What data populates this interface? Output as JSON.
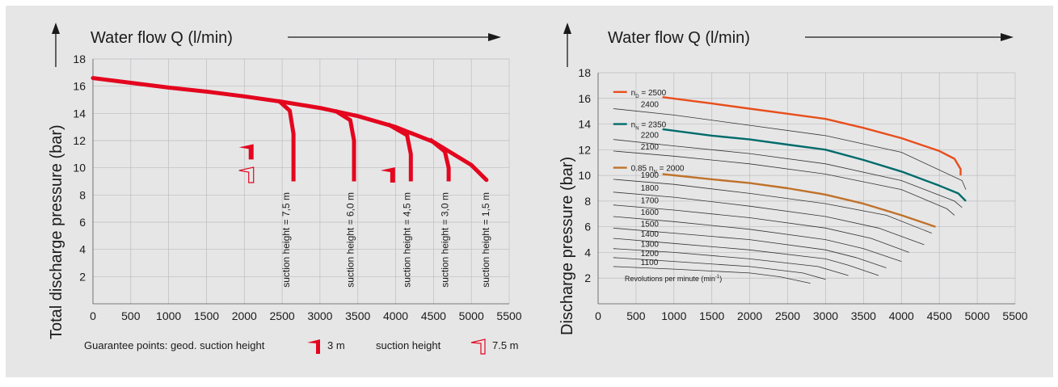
{
  "colors": {
    "red": "#e3061e",
    "orange_red": "#e84e1b",
    "teal": "#006b6b",
    "brown": "#c0722a",
    "thin": "#333333"
  },
  "chart_data": [
    {
      "type": "line",
      "title": "Water flow Q (l/min)",
      "ylabel": "Total discharge pressure (bar)",
      "xlim": [
        0,
        5500
      ],
      "ylim": [
        0,
        18
      ],
      "x_ticks": [
        "0",
        "500",
        "1000",
        "1500",
        "2000",
        "2500",
        "3000",
        "3500",
        "4000",
        "4500",
        "5000",
        "5500"
      ],
      "y_ticks": [
        "2",
        "4",
        "6",
        "8",
        "10",
        "12",
        "14",
        "16",
        "18"
      ],
      "grid": true,
      "main_curve": {
        "x": [
          0,
          500,
          1000,
          1500,
          2000,
          2500,
          3000,
          3500,
          4000,
          4500,
          5000,
          5200
        ],
        "y": [
          16.6,
          16.25,
          15.9,
          15.6,
          15.25,
          14.85,
          14.4,
          13.8,
          13.0,
          11.9,
          10.2,
          9.1
        ]
      },
      "suction_curves": [
        {
          "label": "suction height = 7,5 m",
          "x": [
            2450,
            2600,
            2650,
            2650
          ],
          "y": [
            14.95,
            14.2,
            12.5,
            9.0
          ]
        },
        {
          "label": "suction height = 6,0 m",
          "x": [
            3200,
            3400,
            3450,
            3450
          ],
          "y": [
            14.2,
            13.5,
            12.0,
            9.0
          ]
        },
        {
          "label": "suction height = 4,5 m",
          "x": [
            3900,
            4150,
            4200,
            4200
          ],
          "y": [
            13.2,
            12.4,
            11.0,
            9.0
          ]
        },
        {
          "label": "suction height = 3,0 m",
          "x": [
            4450,
            4650,
            4700,
            4700
          ],
          "y": [
            12.1,
            11.2,
            10.0,
            9.0
          ]
        },
        {
          "label": "suction height = 1,5 m",
          "x": [],
          "y": []
        }
      ],
      "legend_text": {
        "prefix": "Guarantee points: geod. suction height",
        "filled": "3 m",
        "middle": "suction height",
        "open": "7.5 m"
      }
    },
    {
      "type": "line",
      "title": "Water flow Q (l/min)",
      "ylabel": "Discharge pressure (bar)",
      "xlim": [
        0,
        5500
      ],
      "ylim": [
        0,
        18
      ],
      "x_ticks": [
        "0",
        "500",
        "1000",
        "1500",
        "2000",
        "2500",
        "3000",
        "3500",
        "4000",
        "4500",
        "5000",
        "5500"
      ],
      "y_ticks": [
        "2",
        "4",
        "6",
        "8",
        "10",
        "12",
        "14",
        "16",
        "18"
      ],
      "grid": true,
      "note": "Revolutions per minute (min",
      "note_sup": "-1",
      "note_close": ")",
      "highlight": [
        {
          "label_main": "n",
          "label_sub": "D",
          "label_rest": " = 2500",
          "color": "#e84e1b",
          "x": [
            200,
            800,
            1500,
            2000,
            2500,
            3000,
            3500,
            4000,
            4500,
            4700,
            4780,
            4780
          ],
          "y": [
            16.5,
            16.1,
            15.6,
            15.2,
            14.8,
            14.4,
            13.7,
            12.9,
            11.9,
            11.3,
            10.5,
            10.0
          ]
        },
        {
          "label_main": "n",
          "label_sub": "N",
          "label_rest": " = 2350",
          "color": "#006b6b",
          "x": [
            200,
            800,
            1500,
            2000,
            2500,
            3000,
            3500,
            4000,
            4500,
            4750,
            4850
          ],
          "y": [
            14.0,
            13.6,
            13.1,
            12.8,
            12.4,
            12.0,
            11.2,
            10.3,
            9.2,
            8.6,
            8.0
          ]
        },
        {
          "label_main": "0.85 n",
          "label_sub": "N",
          "label_rest": " = 2000",
          "color": "#c0722a",
          "x": [
            200,
            800,
            1500,
            2000,
            2500,
            3000,
            3500,
            4000,
            4450
          ],
          "y": [
            10.6,
            10.1,
            9.7,
            9.4,
            9.0,
            8.5,
            7.8,
            6.9,
            6.0
          ]
        }
      ],
      "rpm_lines": [
        {
          "label": "2400",
          "x": [
            200,
            1000,
            2000,
            3000,
            4000,
            4800,
            4850
          ],
          "y": [
            15.2,
            14.7,
            13.9,
            13.1,
            11.8,
            9.6,
            8.9
          ]
        },
        {
          "label": "2200",
          "x": [
            200,
            1000,
            2000,
            3000,
            4000,
            4700,
            4800
          ],
          "y": [
            12.8,
            12.3,
            11.7,
            10.9,
            9.6,
            8.0,
            7.5
          ]
        },
        {
          "label": "2100",
          "x": [
            200,
            1000,
            2000,
            3000,
            4000,
            4600,
            4700
          ],
          "y": [
            11.9,
            11.5,
            10.9,
            10.1,
            8.9,
            7.4,
            6.9
          ]
        },
        {
          "label": "1900",
          "x": [
            200,
            1000,
            2000,
            3000,
            3800,
            4400
          ],
          "y": [
            9.7,
            9.3,
            8.6,
            7.8,
            6.9,
            5.5
          ]
        },
        {
          "label": "1800",
          "x": [
            200,
            1000,
            2000,
            3000,
            3700,
            4300
          ],
          "y": [
            8.7,
            8.3,
            7.6,
            6.8,
            5.9,
            4.6
          ]
        },
        {
          "label": "1700",
          "x": [
            200,
            1000,
            2000,
            3000,
            3600,
            4100
          ],
          "y": [
            7.7,
            7.3,
            6.7,
            5.9,
            5.1,
            4.0
          ]
        },
        {
          "label": "1600",
          "x": [
            200,
            1000,
            2000,
            3000,
            3500,
            4000
          ],
          "y": [
            6.8,
            6.4,
            5.8,
            5.0,
            4.3,
            3.3
          ]
        },
        {
          "label": "1500",
          "x": [
            200,
            1000,
            2000,
            3000,
            3400,
            3800
          ],
          "y": [
            5.9,
            5.5,
            5.0,
            4.2,
            3.6,
            2.8
          ]
        },
        {
          "label": "1400",
          "x": [
            200,
            1000,
            2000,
            3000,
            3300,
            3700
          ],
          "y": [
            5.1,
            4.7,
            4.2,
            3.5,
            3.0,
            2.2
          ]
        },
        {
          "label": "1300",
          "x": [
            200,
            1000,
            2000,
            2900,
            3300
          ],
          "y": [
            4.3,
            4.0,
            3.5,
            2.9,
            2.2
          ]
        },
        {
          "label": "1200",
          "x": [
            200,
            1000,
            2000,
            2700,
            3000
          ],
          "y": [
            3.6,
            3.3,
            2.9,
            2.4,
            1.9
          ]
        },
        {
          "label": "1100",
          "x": [
            200,
            1000,
            2000,
            2400,
            2800
          ],
          "y": [
            2.9,
            2.7,
            2.4,
            2.1,
            1.6
          ]
        }
      ]
    }
  ]
}
